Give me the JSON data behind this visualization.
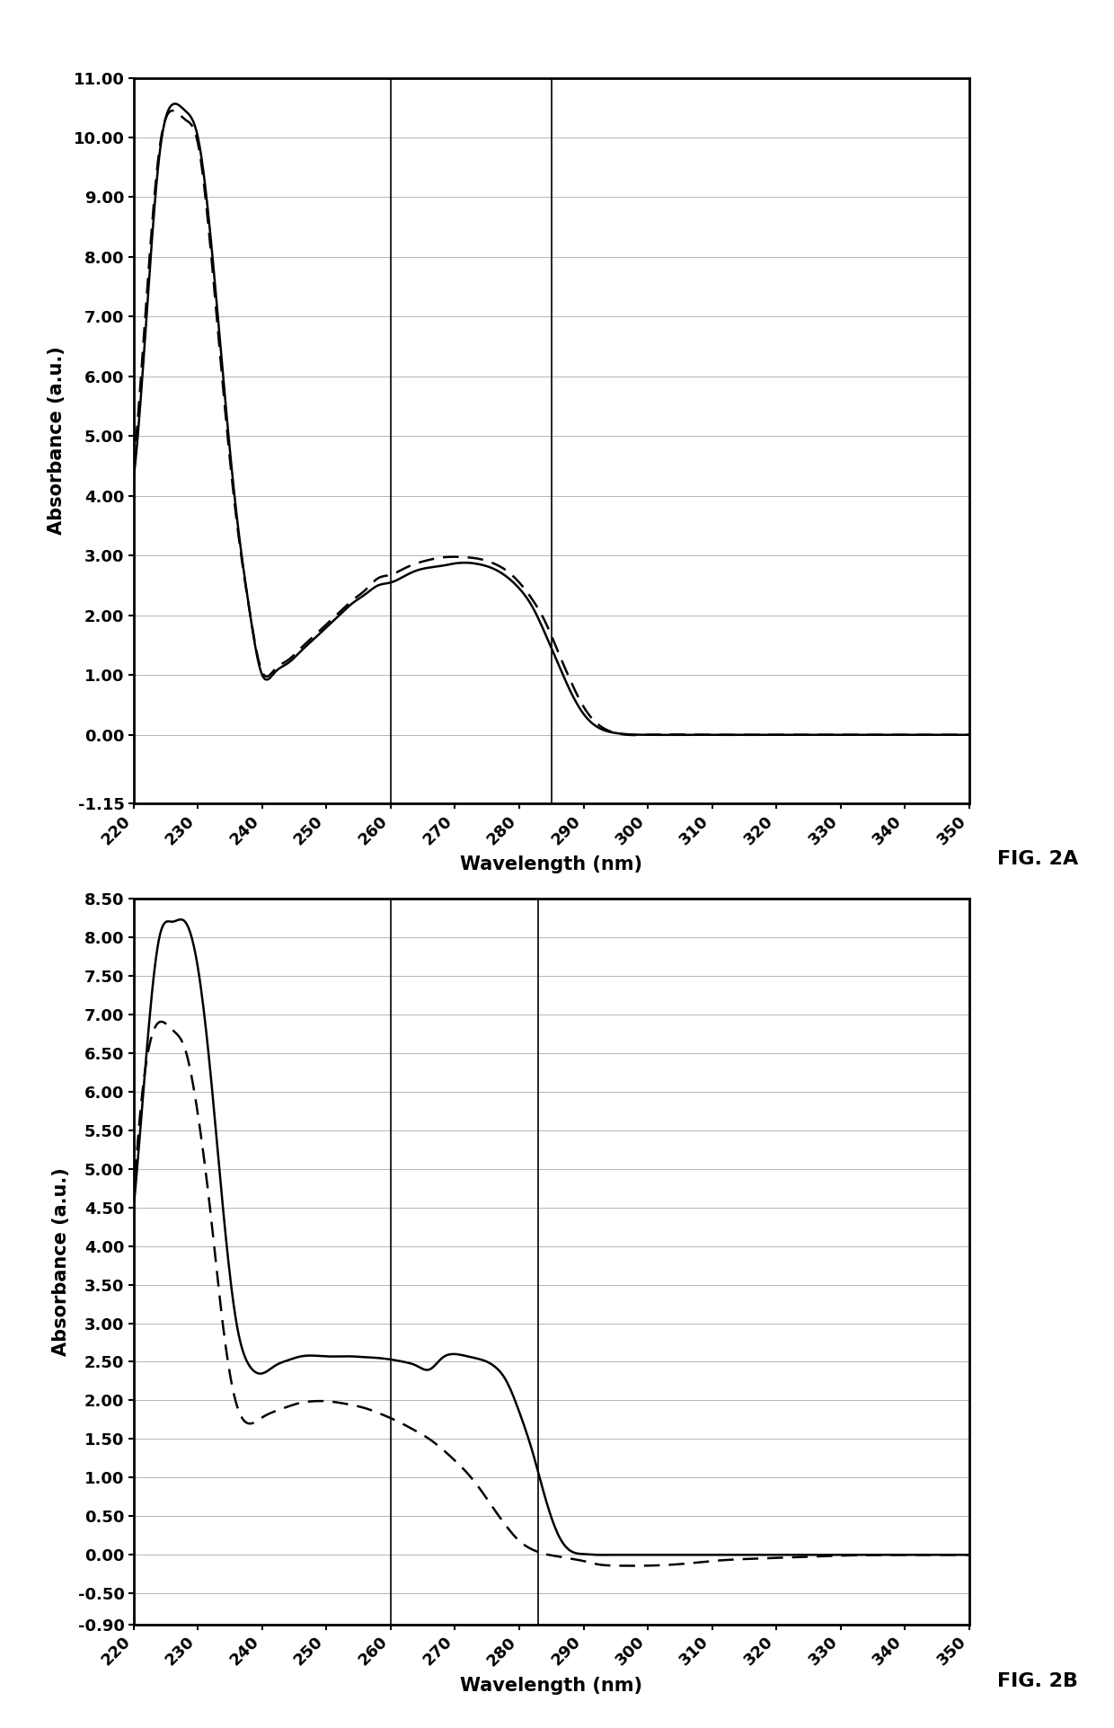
{
  "fig2a": {
    "xlabel": "Wavelength (nm)",
    "ylabel": "Absorbance (a.u.)",
    "fig_label": "FIG. 2A",
    "xlim": [
      220,
      350
    ],
    "ylim": [
      -1.15,
      11.0
    ],
    "yticks": [
      -1.15,
      0.0,
      1.0,
      2.0,
      3.0,
      4.0,
      5.0,
      6.0,
      7.0,
      8.0,
      9.0,
      10.0,
      11.0
    ],
    "ytick_labels": [
      "-1.15",
      "0.00",
      "1.00",
      "2.00",
      "3.00",
      "4.00",
      "5.00",
      "6.00",
      "7.00",
      "8.00",
      "9.00",
      "10.00",
      "11.00"
    ],
    "xticks": [
      220,
      230,
      240,
      250,
      260,
      270,
      280,
      290,
      300,
      310,
      320,
      330,
      340,
      350
    ],
    "vlines": [
      260,
      285
    ],
    "solid_x": [
      220,
      222,
      224,
      226,
      228,
      230,
      232,
      234,
      236,
      238,
      240,
      242,
      244,
      246,
      248,
      250,
      252,
      254,
      256,
      258,
      260,
      262,
      264,
      266,
      268,
      270,
      272,
      274,
      276,
      278,
      280,
      282,
      284,
      286,
      288,
      290,
      295,
      300,
      310,
      320,
      330,
      340,
      350
    ],
    "solid_y": [
      4.3,
      7.0,
      9.7,
      10.55,
      10.45,
      10.0,
      8.3,
      5.9,
      3.7,
      2.1,
      1.0,
      1.05,
      1.2,
      1.4,
      1.6,
      1.8,
      2.0,
      2.2,
      2.35,
      2.5,
      2.55,
      2.65,
      2.75,
      2.8,
      2.83,
      2.87,
      2.88,
      2.85,
      2.78,
      2.65,
      2.45,
      2.15,
      1.7,
      1.2,
      0.72,
      0.35,
      0.03,
      0.0,
      0.0,
      0.0,
      0.0,
      0.0,
      0.0
    ],
    "dashed_x": [
      220,
      222,
      224,
      226,
      228,
      230,
      232,
      234,
      236,
      238,
      240,
      242,
      244,
      246,
      248,
      250,
      252,
      254,
      256,
      258,
      260,
      262,
      264,
      266,
      268,
      270,
      272,
      274,
      276,
      278,
      280,
      282,
      284,
      286,
      288,
      290,
      295,
      300,
      310,
      320,
      330,
      340,
      350
    ],
    "dashed_y": [
      4.5,
      7.3,
      9.8,
      10.45,
      10.3,
      9.9,
      8.1,
      5.7,
      3.6,
      2.1,
      1.05,
      1.1,
      1.25,
      1.45,
      1.65,
      1.85,
      2.05,
      2.25,
      2.42,
      2.62,
      2.68,
      2.78,
      2.87,
      2.93,
      2.97,
      2.98,
      2.97,
      2.94,
      2.87,
      2.75,
      2.55,
      2.27,
      1.9,
      1.4,
      0.9,
      0.47,
      0.03,
      0.0,
      0.0,
      0.0,
      0.0,
      0.0,
      0.0
    ]
  },
  "fig2b": {
    "xlabel": "Wavelength (nm)",
    "ylabel": "Absorbance (a.u.)",
    "fig_label": "FIG. 2B",
    "xlim": [
      220,
      350
    ],
    "ylim": [
      -0.9,
      8.5
    ],
    "yticks": [
      -0.9,
      -0.5,
      0.0,
      0.5,
      1.0,
      1.5,
      2.0,
      2.5,
      3.0,
      3.5,
      4.0,
      4.5,
      5.0,
      5.5,
      6.0,
      6.5,
      7.0,
      7.5,
      8.0,
      8.5
    ],
    "ytick_labels": [
      "-0.90",
      "-0.50",
      "0.00",
      "0.50",
      "1.00",
      "1.50",
      "2.00",
      "2.50",
      "3.00",
      "3.50",
      "4.00",
      "4.50",
      "5.00",
      "5.50",
      "6.00",
      "6.50",
      "7.00",
      "7.50",
      "8.00",
      "8.50"
    ],
    "xticks": [
      220,
      230,
      240,
      250,
      260,
      270,
      280,
      290,
      300,
      310,
      320,
      330,
      340,
      350
    ],
    "vlines": [
      260,
      283
    ],
    "solid_x": [
      220,
      222,
      224,
      226,
      228,
      230,
      232,
      234,
      236,
      238,
      240,
      242,
      244,
      246,
      248,
      250,
      252,
      254,
      256,
      258,
      260,
      262,
      264,
      266,
      268,
      270,
      272,
      274,
      275,
      276,
      278,
      280,
      282,
      284,
      286,
      288,
      290,
      292,
      294,
      296,
      300,
      305,
      310,
      320,
      330,
      340,
      350
    ],
    "solid_y": [
      4.5,
      6.5,
      8.0,
      8.2,
      8.2,
      7.6,
      6.2,
      4.4,
      3.0,
      2.45,
      2.35,
      2.45,
      2.52,
      2.57,
      2.58,
      2.57,
      2.57,
      2.57,
      2.56,
      2.55,
      2.53,
      2.5,
      2.45,
      2.4,
      2.55,
      2.6,
      2.57,
      2.53,
      2.5,
      2.45,
      2.25,
      1.85,
      1.35,
      0.75,
      0.27,
      0.05,
      0.01,
      0.0,
      0.0,
      0.0,
      0.0,
      0.0,
      0.0,
      0.0,
      0.0,
      0.0,
      0.0
    ],
    "dashed_x": [
      220,
      222,
      224,
      226,
      228,
      230,
      232,
      234,
      236,
      238,
      240,
      242,
      244,
      246,
      248,
      250,
      252,
      254,
      256,
      258,
      260,
      262,
      264,
      266,
      268,
      270,
      272,
      274,
      276,
      278,
      280,
      282,
      284,
      286,
      288,
      290,
      292,
      295,
      300,
      305,
      310,
      320,
      330,
      340,
      350
    ],
    "dashed_y": [
      4.6,
      6.4,
      6.9,
      6.8,
      6.55,
      5.7,
      4.4,
      2.9,
      1.95,
      1.7,
      1.78,
      1.86,
      1.92,
      1.97,
      1.99,
      1.99,
      1.97,
      1.94,
      1.9,
      1.84,
      1.77,
      1.69,
      1.6,
      1.5,
      1.37,
      1.22,
      1.05,
      0.84,
      0.6,
      0.37,
      0.18,
      0.07,
      0.01,
      -0.02,
      -0.05,
      -0.08,
      -0.12,
      -0.14,
      -0.14,
      -0.12,
      -0.08,
      -0.04,
      -0.01,
      0.0,
      0.0
    ]
  }
}
